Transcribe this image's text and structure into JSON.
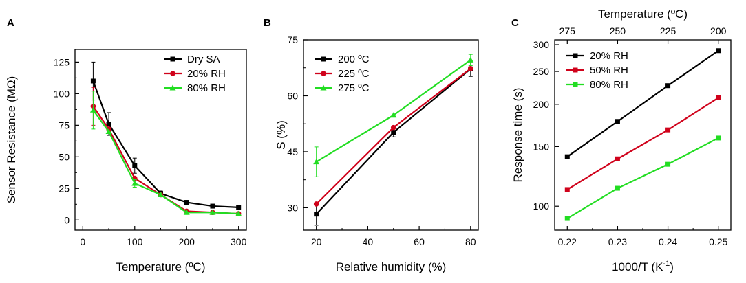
{
  "chart_data": [
    {
      "panel": "A",
      "type": "line",
      "title": "",
      "xlabel": "Temperature (ºC)",
      "ylabel": "Sensor Resistance (MΩ)",
      "xlim": [
        -15,
        315
      ],
      "ylim": [
        -8,
        135
      ],
      "xticks": [
        0,
        100,
        200,
        300
      ],
      "yticks": [
        0,
        25,
        50,
        75,
        100,
        125
      ],
      "xtick_labels": [
        "0",
        "100",
        "200",
        "300"
      ],
      "ytick_labels": [
        "0",
        "25",
        "50",
        "75",
        "100",
        "125"
      ],
      "legend_position": "top-right",
      "series": [
        {
          "name": "Dry SA",
          "color": "#000000",
          "marker": "square",
          "x": [
            20,
            50,
            100,
            150,
            200,
            250,
            300
          ],
          "y": [
            110,
            76,
            43,
            21,
            14,
            11,
            10
          ],
          "err": [
            15,
            9,
            6,
            2,
            1,
            1,
            1
          ]
        },
        {
          "name": "20% RH",
          "color": "#d0021b",
          "marker": "circle",
          "x": [
            20,
            50,
            100,
            150,
            200,
            250,
            300
          ],
          "y": [
            90,
            72,
            33,
            20,
            7,
            6,
            5
          ],
          "err": [
            15,
            0,
            0,
            0,
            0,
            0,
            0
          ]
        },
        {
          "name": "80% RH",
          "color": "#22dd22",
          "marker": "triangle",
          "x": [
            20,
            50,
            100,
            150,
            200,
            250,
            300
          ],
          "y": [
            87,
            70,
            29,
            20,
            6,
            6,
            5
          ],
          "err": [
            15,
            0,
            3,
            0,
            0,
            0,
            0
          ]
        }
      ]
    },
    {
      "panel": "B",
      "type": "line",
      "title": "",
      "xlabel": "Relative humidity (%)",
      "ylabel": "S (%)",
      "xlim": [
        15,
        83
      ],
      "ylim": [
        24,
        75
      ],
      "xticks": [
        20,
        40,
        60,
        80
      ],
      "yticks": [
        30,
        45,
        60,
        75
      ],
      "xtick_labels": [
        "20",
        "40",
        "60",
        "80"
      ],
      "ytick_labels": [
        "30",
        "45",
        "60",
        "75"
      ],
      "legend_position": "top-left",
      "series": [
        {
          "name": "200 ºC",
          "color": "#000000",
          "marker": "square",
          "x": [
            20,
            50,
            80
          ],
          "y": [
            28.3,
            50.2,
            67.2
          ],
          "err": [
            3,
            1.2,
            2
          ]
        },
        {
          "name": "225 ºC",
          "color": "#d0021b",
          "marker": "circle",
          "x": [
            20,
            50,
            80
          ],
          "y": [
            31,
            51.5,
            67.3
          ],
          "err": [
            0,
            0,
            0
          ]
        },
        {
          "name": "275 ºC",
          "color": "#22dd22",
          "marker": "triangle",
          "x": [
            20,
            50,
            80
          ],
          "y": [
            42.3,
            54.8,
            69.6
          ],
          "err": [
            4,
            0,
            1.5
          ]
        }
      ]
    },
    {
      "panel": "C",
      "type": "line",
      "title": "",
      "xlabel": "1000/T (K",
      "xlabel_sup": "-1",
      "xlabel_end": ")",
      "ylabel": "Response time (s)",
      "top_axis_label": "Temperature (ºC)",
      "yscale": "log",
      "xlim": [
        0.2175,
        0.2525
      ],
      "ylim": [
        85,
        310
      ],
      "xticks": [
        0.22,
        0.23,
        0.24,
        0.25
      ],
      "xtick_labels": [
        "0.22",
        "0.23",
        "0.24",
        "0.25"
      ],
      "yticks": [
        100,
        150,
        200,
        250,
        300
      ],
      "ytick_labels": [
        "100",
        "150",
        "200",
        "250",
        "300"
      ],
      "top_ticks": [
        {
          "label": "275",
          "x": 0.22
        },
        {
          "label": "250",
          "x": 0.23
        },
        {
          "label": "225",
          "x": 0.24
        },
        {
          "label": "200",
          "x": 0.25
        }
      ],
      "legend_position": "top-left",
      "series": [
        {
          "name": "20% RH",
          "color": "#000000",
          "marker": "square",
          "x": [
            0.22,
            0.23,
            0.24,
            0.25
          ],
          "y": [
            140,
            178,
            227,
            288
          ]
        },
        {
          "name": "50% RH",
          "color": "#d0021b",
          "marker": "square",
          "x": [
            0.22,
            0.23,
            0.24,
            0.25
          ],
          "y": [
            112,
            138,
            168,
            209
          ]
        },
        {
          "name": "80% RH",
          "color": "#22dd22",
          "marker": "square",
          "x": [
            0.22,
            0.23,
            0.24,
            0.25
          ],
          "y": [
            92,
            113,
            133,
            159
          ]
        }
      ]
    }
  ]
}
